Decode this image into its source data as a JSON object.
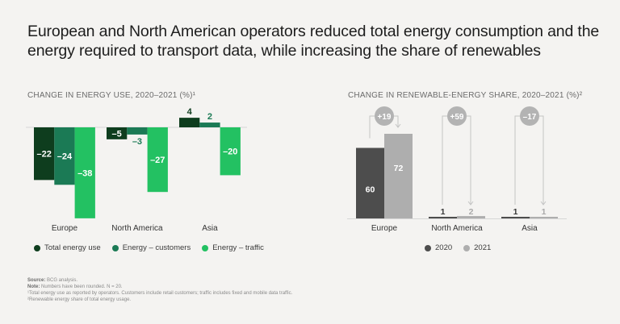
{
  "title": "European and North American operators reduced total energy consumption and the energy required to transport data, while increasing the share of renewables",
  "chart_data": [
    {
      "type": "bar",
      "title": "CHANGE IN ENERGY USE, 2020–2021 (%)¹",
      "categories": [
        "Europe",
        "North America",
        "Asia"
      ],
      "series": [
        {
          "name": "Total energy use",
          "color": "#0e3d1e",
          "values": [
            -22,
            -5,
            4
          ],
          "labels": [
            "–22",
            "–5",
            "4"
          ]
        },
        {
          "name": "Energy – customers",
          "color": "#1b7a55",
          "values": [
            -24,
            -3,
            2
          ],
          "labels": [
            "–24",
            "–3",
            "2"
          ]
        },
        {
          "name": "Energy – traffic",
          "color": "#23c162",
          "values": [
            -38,
            -27,
            -20
          ],
          "labels": [
            "–38",
            "–27",
            "–20"
          ]
        }
      ],
      "ylim": [
        -38,
        4
      ],
      "grid": false,
      "legend": "bottom"
    },
    {
      "type": "bar",
      "title": "CHANGE IN RENEWABLE-ENERGY SHARE, 2020–2021 (%)²",
      "categories": [
        "Europe",
        "North America",
        "Asia"
      ],
      "series": [
        {
          "name": "2020",
          "color": "#4d4d4d",
          "values": [
            60,
            1,
            1
          ],
          "labels": [
            "60",
            "1",
            "1"
          ]
        },
        {
          "name": "2021",
          "color": "#aeaeae",
          "values": [
            72,
            2,
            1
          ],
          "labels": [
            "72",
            "2",
            "1"
          ]
        }
      ],
      "changes": [
        "+19",
        "+59",
        "–17"
      ],
      "ylim": [
        0,
        72
      ],
      "grid": false,
      "legend": "bottom"
    }
  ],
  "footnotes": {
    "source_label": "Source:",
    "source_text": " BCG analysis.",
    "note_label": "Note:",
    "note_text": " Numbers have been rounded. N = 20.",
    "fn1": "¹Total energy use as reported by operators. Customers include retail customers; traffic includes fixed and mobile data traffic.",
    "fn2": "²Renewable energy share of total energy usage."
  }
}
